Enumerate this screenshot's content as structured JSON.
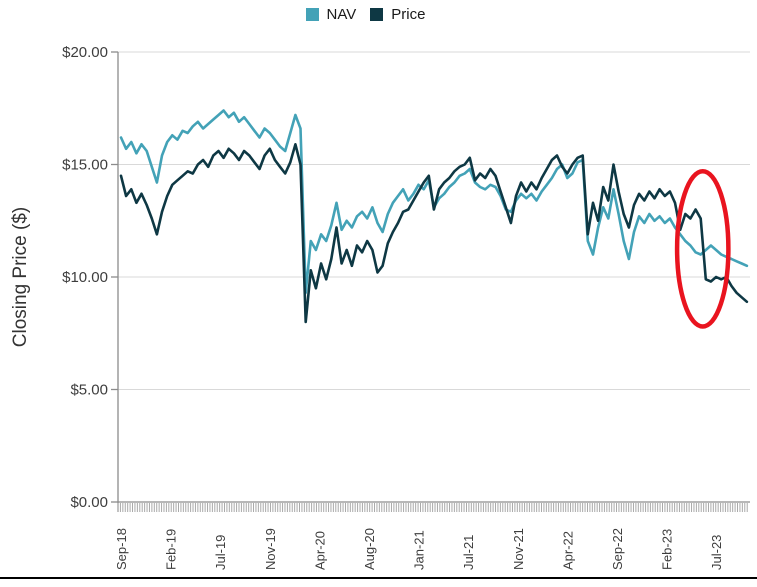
{
  "legend": {
    "items": [
      {
        "label": "NAV",
        "color": "#43a2b7"
      },
      {
        "label": "Price",
        "color": "#0e3844"
      }
    ]
  },
  "y_axis": {
    "title": "Closing Price ($)",
    "tick_labels": [
      "$0.00",
      "$5.00",
      "$10.00",
      "$15.00",
      "$20.00"
    ],
    "tick_values": [
      0,
      5,
      10,
      15,
      20
    ]
  },
  "x_axis": {
    "tick_labels": [
      "Sep-18",
      "Feb-19",
      "Jul-19",
      "Nov-19",
      "Apr-20",
      "Aug-20",
      "Jan-21",
      "Jul-21",
      "Nov-21",
      "Apr-22",
      "Sep-22",
      "Feb-23",
      "Jul-23"
    ]
  },
  "chart_data": {
    "type": "line",
    "title": "",
    "xlabel": "",
    "ylabel": "Closing Price ($)",
    "ylim": [
      0,
      20
    ],
    "grid": "horizontal",
    "legend_position": "top-center",
    "x_unit": "months since Sep-2018",
    "x_start": 0,
    "x_step": 0.5,
    "series": [
      {
        "name": "NAV",
        "color": "#43a2b7",
        "values": [
          16.2,
          15.7,
          16.0,
          15.5,
          15.9,
          15.6,
          14.9,
          14.2,
          15.4,
          16.0,
          16.3,
          16.1,
          16.5,
          16.4,
          16.7,
          16.9,
          16.6,
          16.8,
          17.0,
          17.2,
          17.4,
          17.1,
          17.3,
          16.9,
          17.1,
          16.8,
          16.5,
          16.2,
          16.6,
          16.4,
          16.1,
          15.8,
          15.6,
          16.4,
          17.2,
          16.6,
          9.3,
          11.6,
          11.2,
          11.9,
          11.6,
          12.3,
          13.3,
          12.1,
          12.5,
          12.2,
          12.7,
          12.9,
          12.6,
          13.1,
          12.4,
          12.0,
          12.8,
          13.3,
          13.6,
          13.9,
          13.4,
          13.7,
          14.1,
          13.9,
          14.3,
          13.1,
          13.5,
          13.7,
          14.0,
          14.2,
          14.5,
          14.6,
          14.8,
          14.2,
          14.0,
          13.9,
          14.1,
          14.0,
          13.6,
          13.0,
          12.9,
          13.4,
          13.7,
          13.5,
          13.7,
          13.4,
          13.8,
          14.1,
          14.4,
          14.8,
          15.0,
          14.4,
          14.6,
          15.1,
          15.2,
          11.6,
          11.0,
          12.2,
          13.1,
          12.6,
          13.9,
          12.8,
          11.6,
          10.8,
          12.0,
          12.7,
          12.4,
          12.8,
          12.5,
          12.7,
          12.4,
          12.6,
          12.2,
          11.9,
          11.6,
          11.4,
          11.1,
          11.0,
          11.2,
          11.4,
          11.2,
          11.0,
          10.9,
          10.8,
          10.7,
          10.6,
          10.5
        ]
      },
      {
        "name": "Price",
        "color": "#0e3844",
        "values": [
          14.5,
          13.6,
          13.9,
          13.3,
          13.7,
          13.2,
          12.6,
          11.9,
          12.9,
          13.6,
          14.1,
          14.3,
          14.5,
          14.7,
          14.6,
          15.0,
          15.2,
          14.9,
          15.4,
          15.6,
          15.3,
          15.7,
          15.5,
          15.2,
          15.6,
          15.4,
          15.1,
          14.8,
          15.4,
          15.7,
          15.2,
          14.9,
          14.6,
          15.1,
          15.9,
          15.0,
          8.0,
          10.3,
          9.5,
          10.6,
          9.9,
          10.8,
          12.2,
          10.6,
          11.2,
          10.5,
          11.4,
          11.1,
          11.6,
          11.2,
          10.2,
          10.5,
          11.5,
          12.0,
          12.4,
          12.9,
          13.0,
          13.4,
          13.8,
          14.2,
          14.5,
          13.0,
          13.9,
          14.2,
          14.4,
          14.7,
          14.9,
          15.0,
          15.3,
          14.3,
          14.6,
          14.4,
          14.8,
          14.5,
          13.8,
          13.1,
          12.4,
          13.6,
          14.2,
          13.8,
          14.2,
          13.9,
          14.4,
          14.8,
          15.2,
          15.4,
          14.9,
          14.6,
          15.0,
          15.3,
          15.4,
          11.9,
          13.3,
          12.5,
          14.0,
          13.4,
          15.0,
          13.8,
          12.8,
          12.2,
          13.2,
          13.7,
          13.4,
          13.8,
          13.5,
          13.9,
          13.6,
          13.8,
          13.3,
          12.1,
          12.8,
          12.6,
          13.0,
          12.6,
          9.9,
          9.8,
          10.0,
          9.9,
          10.0,
          9.6,
          9.3,
          9.1,
          8.9
        ]
      }
    ],
    "annotation": {
      "type": "ellipse",
      "color": "#e9141f",
      "x_months": [
        54.2,
        59.2
      ],
      "y_values": [
        7.8,
        14.7
      ]
    }
  },
  "colors": {
    "gridline": "#d9d9d9",
    "axis_line": "#8c8c8c",
    "minor_tick": "#a9a9a9",
    "tick_text": "#3d3d3d",
    "bottom_rule": "#000000"
  }
}
